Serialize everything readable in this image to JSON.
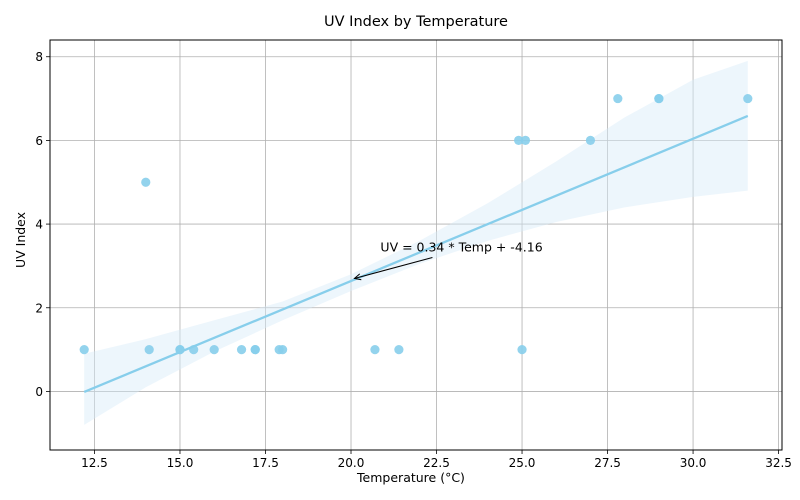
{
  "chart_data": {
    "type": "scatter",
    "title": "UV Index by Temperature",
    "xlabel": "Temperature (°C)",
    "ylabel": "UV Index",
    "xlim": [
      11.2,
      32.6
    ],
    "ylim": [
      -1.4,
      8.4
    ],
    "xticks": [
      12.5,
      15.0,
      17.5,
      20.0,
      22.5,
      25.0,
      27.5,
      30.0,
      32.5
    ],
    "xtick_labels": [
      "12.5",
      "15.0",
      "17.5",
      "20.0",
      "22.5",
      "25.0",
      "27.5",
      "30.0",
      "32.5"
    ],
    "yticks": [
      0,
      2,
      4,
      6,
      8
    ],
    "ytick_labels": [
      "0",
      "2",
      "4",
      "6",
      "8"
    ],
    "grid": true,
    "colors": {
      "points": "#87ceeb",
      "line": "#87ceeb",
      "band": "#d6ecf8"
    },
    "points": [
      {
        "x": 12.2,
        "y": 1
      },
      {
        "x": 14.0,
        "y": 5
      },
      {
        "x": 14.1,
        "y": 1
      },
      {
        "x": 15.0,
        "y": 1
      },
      {
        "x": 15.0,
        "y": 1
      },
      {
        "x": 15.4,
        "y": 1
      },
      {
        "x": 16.0,
        "y": 1
      },
      {
        "x": 16.8,
        "y": 1
      },
      {
        "x": 17.2,
        "y": 1
      },
      {
        "x": 17.2,
        "y": 1
      },
      {
        "x": 17.9,
        "y": 1
      },
      {
        "x": 18.0,
        "y": 1
      },
      {
        "x": 20.7,
        "y": 1
      },
      {
        "x": 21.4,
        "y": 1
      },
      {
        "x": 24.9,
        "y": 6
      },
      {
        "x": 25.0,
        "y": 1
      },
      {
        "x": 25.1,
        "y": 6
      },
      {
        "x": 27.0,
        "y": 6
      },
      {
        "x": 27.8,
        "y": 7
      },
      {
        "x": 29.0,
        "y": 7
      },
      {
        "x": 29.0,
        "y": 7
      },
      {
        "x": 31.6,
        "y": 7
      }
    ],
    "regression": {
      "slope": 0.34,
      "intercept": -4.16,
      "x_range": [
        12.2,
        31.6
      ]
    },
    "confidence_band": {
      "x": [
        12.2,
        14.0,
        16.0,
        18.0,
        20.0,
        22.0,
        24.0,
        26.0,
        28.0,
        30.0,
        31.6
      ],
      "lower": [
        -0.8,
        0.1,
        0.95,
        1.7,
        2.4,
        3.05,
        3.6,
        4.05,
        4.4,
        4.65,
        4.8
      ],
      "upper": [
        0.9,
        1.25,
        1.7,
        2.15,
        2.8,
        3.6,
        4.5,
        5.5,
        6.55,
        7.45,
        7.9
      ]
    },
    "annotation": {
      "text": "UV = 0.34 * Temp + -4.16",
      "arrow_to": {
        "x": 20.1,
        "y": 2.7
      }
    }
  }
}
